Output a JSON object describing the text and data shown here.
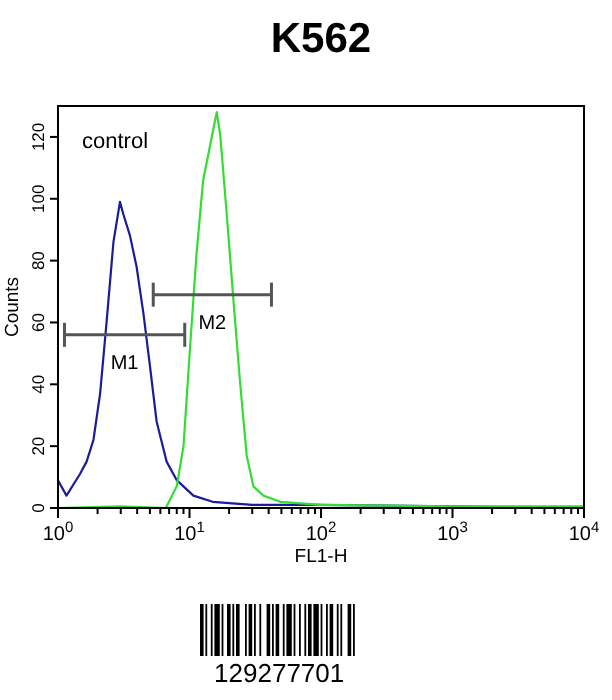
{
  "chart_data": {
    "type": "line",
    "title": "K562",
    "xlabel": "FL1-H",
    "ylabel": "Counts",
    "log": "x",
    "xlim": [
      1,
      10000
    ],
    "ylim": [
      0,
      130
    ],
    "xticks": [
      {
        "value": 1,
        "label": "10$^{0}$"
      },
      {
        "value": 2,
        "label": null
      },
      {
        "value": 3,
        "label": null
      },
      {
        "value": 4,
        "label": null
      },
      {
        "value": 5,
        "label": null
      },
      {
        "value": 6,
        "label": null
      },
      {
        "value": 7,
        "label": null
      },
      {
        "value": 8,
        "label": null
      },
      {
        "value": 9,
        "label": null
      },
      {
        "value": 10,
        "label": "10$^{1}$"
      },
      {
        "value": 20,
        "label": null
      },
      {
        "value": 30,
        "label": null
      },
      {
        "value": 40,
        "label": null
      },
      {
        "value": 50,
        "label": null
      },
      {
        "value": 60,
        "label": null
      },
      {
        "value": 70,
        "label": null
      },
      {
        "value": 80,
        "label": null
      },
      {
        "value": 90,
        "label": null
      },
      {
        "value": 100,
        "label": "10$^{2}$"
      },
      {
        "value": 200,
        "label": null
      },
      {
        "value": 300,
        "label": null
      },
      {
        "value": 400,
        "label": null
      },
      {
        "value": 500,
        "label": null
      },
      {
        "value": 600,
        "label": null
      },
      {
        "value": 700,
        "label": null
      },
      {
        "value": 800,
        "label": null
      },
      {
        "value": 900,
        "label": null
      },
      {
        "value": 1000,
        "label": "10$^{3}$"
      },
      {
        "value": 2000,
        "label": null
      },
      {
        "value": 3000,
        "label": null
      },
      {
        "value": 4000,
        "label": null
      },
      {
        "value": 5000,
        "label": null
      },
      {
        "value": 6000,
        "label": null
      },
      {
        "value": 7000,
        "label": null
      },
      {
        "value": 8000,
        "label": null
      },
      {
        "value": 9000,
        "label": null
      },
      {
        "value": 10000,
        "label": "10$^{4}$"
      }
    ],
    "yticks": [
      0,
      20,
      40,
      60,
      80,
      100,
      120
    ],
    "series": [
      {
        "color": "#1c1c9a",
        "x": [
          1,
          1.16,
          1.47,
          1.65,
          1.86,
          2.09,
          2.34,
          2.64,
          2.96,
          3.14,
          3.53,
          3.96,
          4.46,
          5.0,
          5.62,
          6.7,
          8.0,
          10.7,
          15,
          30,
          100,
          1000,
          10000
        ],
        "values": [
          9,
          4,
          11,
          15,
          22,
          37,
          60,
          86,
          99,
          95,
          88,
          78,
          63,
          46,
          28,
          15,
          9,
          4,
          2,
          1,
          1,
          0.5,
          0
        ]
      },
      {
        "color": "#33dd33",
        "x": [
          1,
          3,
          6.6,
          8,
          9.0,
          10.1,
          11.3,
          12.7,
          14.3,
          16.1,
          17.1,
          19.2,
          21.6,
          24.2,
          27.2,
          30.6,
          36.5,
          49,
          100,
          1000,
          10000
        ],
        "values": [
          0,
          0.5,
          0,
          7,
          20,
          52,
          82,
          106,
          117,
          128,
          121,
          95,
          67,
          41,
          17,
          7,
          4,
          2,
          1,
          0.5,
          0.5
        ]
      },
      {
        "type": "line",
        "name": "M1",
        "color": "#555555",
        "x": [
          1.12,
          9.2
        ],
        "values": [
          56,
          56
        ]
      },
      {
        "type": "line",
        "name": "M2",
        "color": "#555555",
        "x": [
          5.3,
          42
        ],
        "values": [
          69,
          69
        ]
      }
    ],
    "annotations": [
      "control",
      "129277701"
    ]
  }
}
